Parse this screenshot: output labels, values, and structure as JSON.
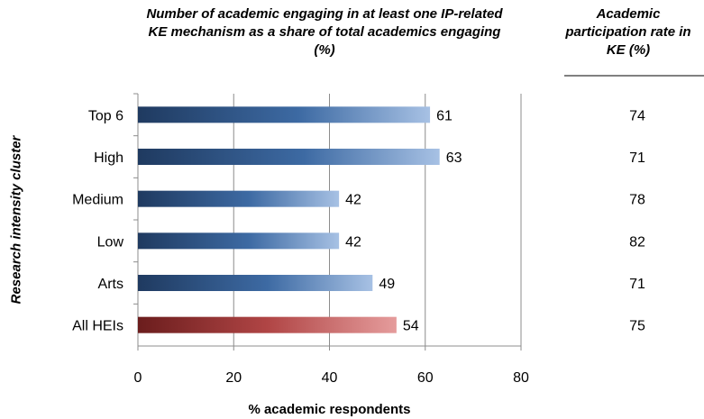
{
  "chart_data": {
    "type": "bar",
    "orientation": "horizontal",
    "title": "Number of academic engaging in at least one IP-related KE mechanism as a share of total academics engaging (%)",
    "xlabel": "% academic respondents",
    "ylabel": "Research intensity cluster",
    "xlim": [
      0,
      80
    ],
    "xticks": [
      "0",
      "20",
      "40",
      "60",
      "80"
    ],
    "grid": "vertical gridlines",
    "categories": [
      "Top 6",
      "High",
      "Medium",
      "Low",
      "Arts",
      "All HEIs"
    ],
    "values": [
      61,
      63,
      42,
      42,
      49,
      54
    ],
    "bar_colors": [
      "#4a72a8",
      "#4a72a8",
      "#4a72a8",
      "#4a72a8",
      "#4a72a8",
      "#b94a4a"
    ],
    "side_column": {
      "title": "Academic participation rate in KE (%)",
      "values": [
        "74",
        "71",
        "78",
        "82",
        "71",
        "75"
      ]
    }
  }
}
